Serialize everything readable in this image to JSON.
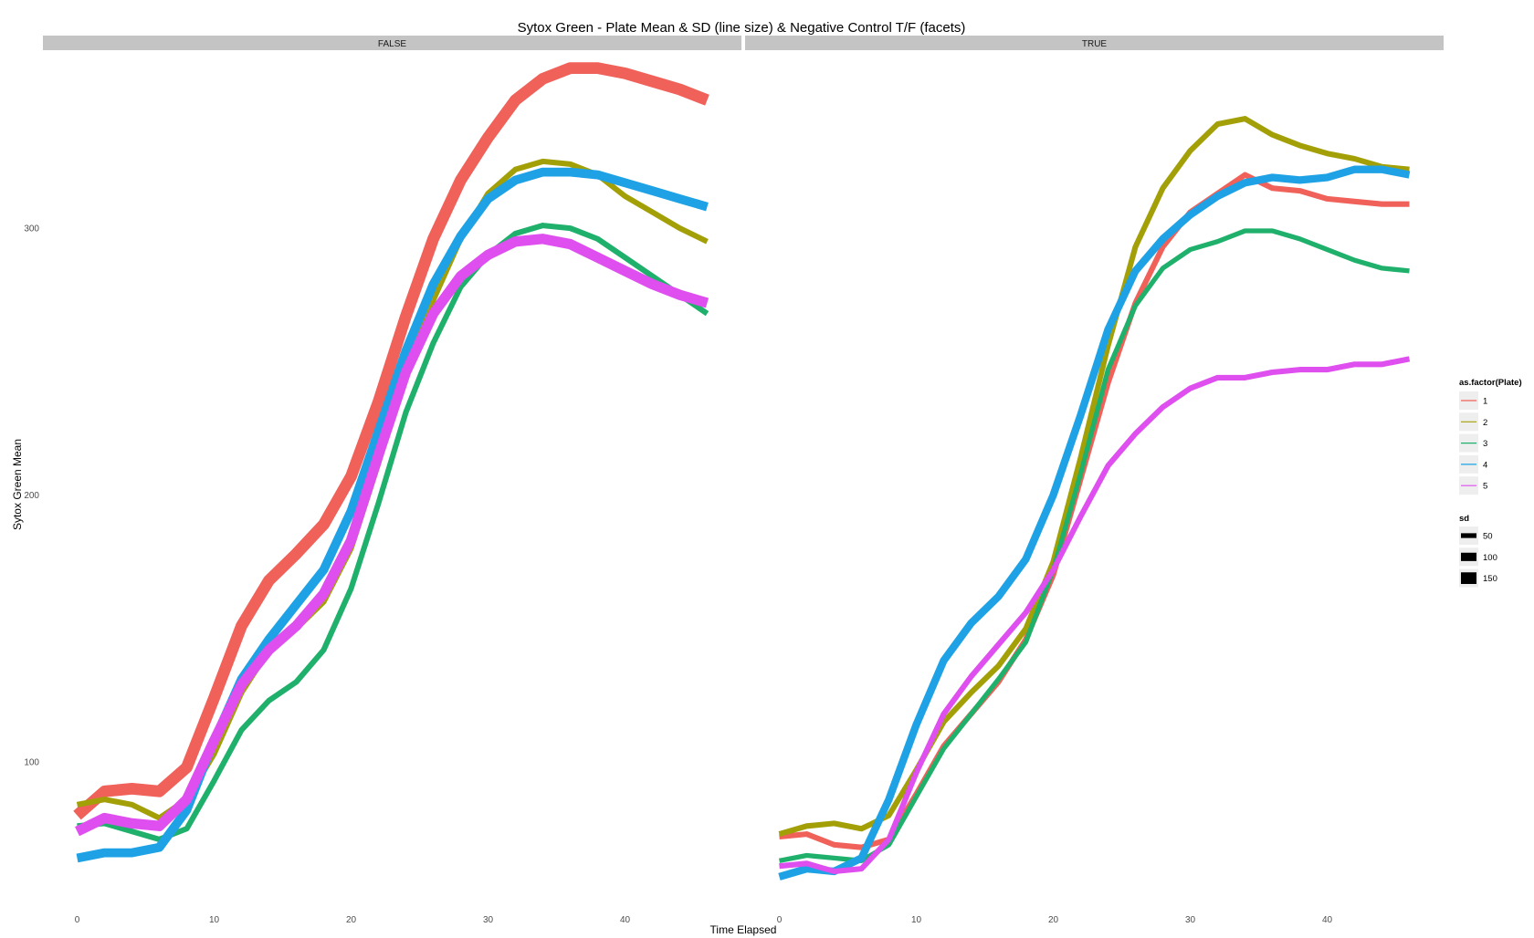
{
  "chart_data": {
    "type": "line",
    "title": "Sytox Green - Plate Mean & SD (line size) & Negative Control T/F (facets)",
    "xlabel": "Time Elapsed",
    "ylabel": "Sytox Green Mean",
    "xlim": [
      -2.5,
      48.5
    ],
    "ylim": [
      45,
      366
    ],
    "x_ticks": [
      "0",
      "10",
      "20",
      "30",
      "40"
    ],
    "y_ticks": [
      "100",
      "200",
      "300"
    ],
    "grid": false,
    "x": [
      0,
      2,
      4,
      6,
      8,
      10,
      12,
      14,
      16,
      18,
      20,
      22,
      24,
      26,
      28,
      30,
      32,
      34,
      36,
      38,
      40,
      42,
      44,
      46
    ],
    "facets": [
      {
        "label": "FALSE",
        "series": [
          {
            "plate": "1",
            "sd": 150,
            "values": [
              80,
              89,
              90,
              89,
              98,
              124,
              151,
              168,
              178,
              189,
              207,
              235,
              267,
              296,
              318,
              334,
              348,
              356,
              360,
              360,
              358,
              355,
              352,
              348
            ]
          },
          {
            "plate": "2",
            "sd": 60,
            "values": [
              84,
              86,
              84,
              79,
              86,
              103,
              126,
              142,
              150,
              160,
              180,
              212,
              246,
              273,
              296,
              313,
              322,
              325,
              324,
              320,
              312,
              306,
              300,
              295
            ]
          },
          {
            "plate": "3",
            "sd": 60,
            "values": [
              76,
              77,
              74,
              71,
              75,
              93,
              112,
              123,
              130,
              142,
              165,
              197,
              231,
              257,
              278,
              290,
              298,
              301,
              300,
              296,
              289,
              282,
              275,
              268
            ]
          },
          {
            "plate": "4",
            "sd": 110,
            "values": [
              64,
              66,
              66,
              68,
              82,
              108,
              131,
              146,
              159,
              172,
              194,
              224,
              254,
              279,
              297,
              311,
              318,
              321,
              321,
              320,
              317,
              314,
              311,
              308
            ]
          },
          {
            "plate": "5",
            "sd": 130,
            "values": [
              74,
              79,
              77,
              76,
              86,
              108,
              129,
              142,
              151,
              163,
              183,
              215,
              246,
              268,
              282,
              290,
              295,
              296,
              294,
              289,
              284,
              279,
              275,
              272
            ]
          }
        ]
      },
      {
        "label": "TRUE",
        "series": [
          {
            "plate": "1",
            "sd": 60,
            "values": [
              72,
              73,
              69,
              68,
              71,
              88,
              106,
              118,
              130,
              146,
              170,
              206,
              242,
              272,
              293,
              306,
              313,
              320,
              315,
              314,
              311,
              310,
              309,
              309
            ]
          },
          {
            "plate": "2",
            "sd": 60,
            "values": [
              73,
              76,
              77,
              75,
              80,
              97,
              115,
              126,
              136,
              150,
              175,
              214,
              256,
              293,
              315,
              329,
              339,
              341,
              335,
              331,
              328,
              326,
              323,
              322
            ]
          },
          {
            "plate": "3",
            "sd": 50,
            "values": [
              63,
              65,
              64,
              63,
              69,
              87,
              105,
              118,
              131,
              145,
              172,
              208,
              247,
              271,
              285,
              292,
              295,
              299,
              299,
              296,
              292,
              288,
              285,
              284
            ]
          },
          {
            "plate": "4",
            "sd": 90,
            "values": [
              57,
              60,
              59,
              64,
              86,
              114,
              138,
              152,
              162,
              176,
              200,
              230,
              262,
              284,
              296,
              305,
              312,
              317,
              319,
              318,
              319,
              322,
              322,
              320
            ]
          },
          {
            "plate": "5",
            "sd": 60,
            "values": [
              61,
              62,
              59,
              60,
              71,
              96,
              118,
              132,
              144,
              156,
              172,
              192,
              211,
              223,
              233,
              240,
              244,
              244,
              246,
              247,
              247,
              249,
              249,
              251
            ]
          }
        ]
      }
    ],
    "legend": {
      "position": "right",
      "colour_title": "as.factor(Plate)",
      "colour_entries": [
        {
          "label": "1",
          "color": "#F0615A"
        },
        {
          "label": "2",
          "color": "#A3A007"
        },
        {
          "label": "3",
          "color": "#1FB06B"
        },
        {
          "label": "4",
          "color": "#1EA2E5"
        },
        {
          "label": "5",
          "color": "#DF4EEE"
        }
      ],
      "size_title": "sd",
      "size_entries": [
        {
          "label": "50",
          "sd": 50
        },
        {
          "label": "100",
          "sd": 100
        },
        {
          "label": "150",
          "sd": 150
        }
      ]
    }
  }
}
